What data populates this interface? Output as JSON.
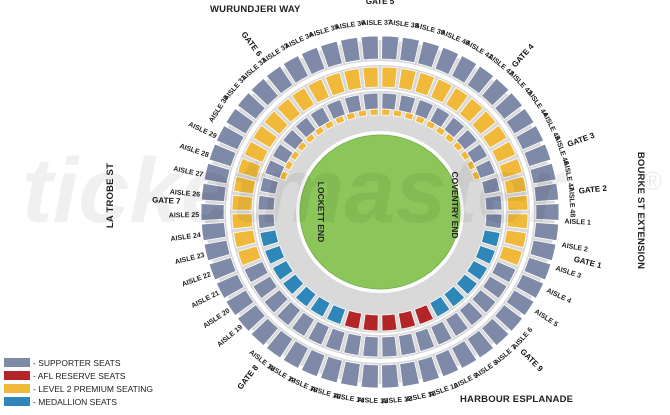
{
  "venue": {
    "field_label_left": "LOCKETT END",
    "field_label_right": "COVENTRY END",
    "watermark": "ticketmaster",
    "watermark_mark": "®"
  },
  "streets": {
    "top": "WURUNDJERI WAY",
    "left": "LA TROBE ST",
    "right": "BOURKE ST EXTENSION",
    "bottom": "HARBOUR ESPLANADE"
  },
  "gates": [
    "GATE 1",
    "GATE 2",
    "GATE 3",
    "GATE 4",
    "GATE 5",
    "GATE 6",
    "GATE 7",
    "GATE 8",
    "GATE 9"
  ],
  "aisles_top": [
    "AISLE 30",
    "AISLE 31",
    "AISLE 32",
    "AISLE 33",
    "AISLE 34",
    "AISLE 35",
    "AISLE 36",
    "AISLE 37",
    "AISLE 38",
    "AISLE 39",
    "AISLE 40",
    "AISLE 41",
    "AISLE 42",
    "AISLE 43",
    "AISLE 44",
    "AISLE 45",
    "AISLE 46",
    "AISLE 47",
    "AISLE 48"
  ],
  "aisles_left": [
    "AISLE 29",
    "AISLE 28",
    "AISLE 27",
    "AISLE 26",
    "AISLE 25",
    "AISLE 24",
    "AISLE 23",
    "AISLE 22",
    "AISLE 21",
    "AISLE 20",
    "AISLE 19"
  ],
  "aisles_bottom": [
    "AISLE 18",
    "AISLE 17",
    "AISLE 16",
    "AISLE 15",
    "AISLE 14",
    "AISLE 13",
    "AISLE 12",
    "AISLE 11",
    "AISLE 10",
    "AISLE 9",
    "AISLE 8",
    "AISLE 7",
    "AISLE 6"
  ],
  "aisles_right": [
    "AISLE 1",
    "AISLE 2",
    "AISLE 3",
    "AISLE 4",
    "AISLE 5"
  ],
  "legend": [
    {
      "label": "- SUPPORTER SEATS",
      "color": "#7f8aa8"
    },
    {
      "label": "- AFL RESERVE SEATS",
      "color": "#b32628"
    },
    {
      "label": "- LEVEL 2 PREMIUM SEATING",
      "color": "#f0b93a"
    },
    {
      "label": "- MEDALLION SEATS",
      "color": "#2f86b8"
    }
  ],
  "colors": {
    "field": "#8cc65a",
    "concourse": "#d9d9d9",
    "supporter": "#7f8aa8",
    "reserve": "#b32628",
    "premium": "#f0b93a",
    "medallion": "#2f86b8"
  }
}
